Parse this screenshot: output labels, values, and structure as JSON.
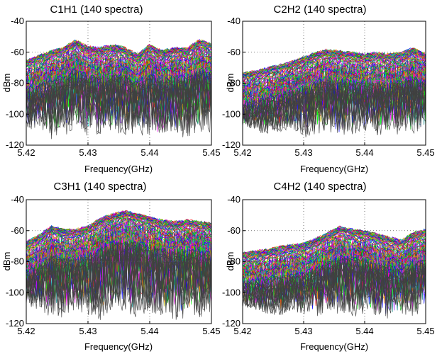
{
  "chart_data": [
    {
      "type": "line",
      "title": "C1H1 (140 spectra)",
      "xlabel": "Frequency(GHz)",
      "ylabel": "dBm",
      "xlim": [
        5.42,
        5.45
      ],
      "ylim": [
        -120,
        -40
      ],
      "xticks": [
        "5.42",
        "5.43",
        "5.44",
        "5.45"
      ],
      "yticks": [
        "-40",
        "-60",
        "-80",
        "-100",
        "-120"
      ],
      "grid": true,
      "series_count": 140,
      "envelope": {
        "x": [
          5.42,
          5.422,
          5.424,
          5.426,
          5.428,
          5.43,
          5.432,
          5.434,
          5.436,
          5.438,
          5.44,
          5.442,
          5.444,
          5.446,
          5.448,
          5.45
        ],
        "upper": [
          -66,
          -63,
          -60,
          -58,
          -53,
          -57,
          -58,
          -56,
          -58,
          -62,
          -56,
          -60,
          -58,
          -58,
          -53,
          -55
        ],
        "lower": [
          -110,
          -112,
          -118,
          -115,
          -110,
          -116,
          -116,
          -112,
          -115,
          -112,
          -118,
          -116,
          -114,
          -117,
          -113,
          -115
        ]
      },
      "colors": [
        "#0000ff",
        "#00a000",
        "#ff0000",
        "#00c0c0",
        "#c000c0",
        "#c0c000",
        "#404040",
        "#ff8000",
        "#8000ff",
        "#008080",
        "#00ff00",
        "#ff00ff"
      ]
    },
    {
      "type": "line",
      "title": "C2H2 (140 spectra)",
      "xlabel": "Frequency(GHz)",
      "ylabel": "dBm",
      "xlim": [
        5.42,
        5.45
      ],
      "ylim": [
        -120,
        -40
      ],
      "xticks": [
        "5.42",
        "5.43",
        "5.44",
        "5.45"
      ],
      "yticks": [
        "-40",
        "-60",
        "-80",
        "-100",
        "-120"
      ],
      "grid": true,
      "series_count": 140,
      "envelope": {
        "x": [
          5.42,
          5.422,
          5.424,
          5.426,
          5.428,
          5.43,
          5.432,
          5.434,
          5.436,
          5.438,
          5.44,
          5.442,
          5.444,
          5.446,
          5.448,
          5.45
        ],
        "upper": [
          -74,
          -73,
          -71,
          -69,
          -67,
          -64,
          -61,
          -59,
          -60,
          -61,
          -62,
          -61,
          -62,
          -61,
          -58,
          -62
        ],
        "lower": [
          -108,
          -110,
          -115,
          -113,
          -110,
          -116,
          -113,
          -112,
          -117,
          -114,
          -112,
          -118,
          -114,
          -113,
          -116,
          -114
        ]
      },
      "colors": [
        "#0000ff",
        "#00a000",
        "#ff0000",
        "#00c0c0",
        "#c000c0",
        "#c0c000",
        "#404040",
        "#ff8000",
        "#8000ff",
        "#008080",
        "#00ff00",
        "#ff00ff"
      ]
    },
    {
      "type": "line",
      "title": "C3H1 (140 spectra)",
      "xlabel": "Frequency(GHz)",
      "ylabel": "dBm",
      "xlim": [
        5.42,
        5.45
      ],
      "ylim": [
        -120,
        -40
      ],
      "xticks": [
        "5.42",
        "5.43",
        "5.44",
        "5.45"
      ],
      "yticks": [
        "-40",
        "-60",
        "-80",
        "-100",
        "-120"
      ],
      "grid": true,
      "series_count": 140,
      "envelope": {
        "x": [
          5.42,
          5.422,
          5.424,
          5.426,
          5.428,
          5.43,
          5.432,
          5.434,
          5.436,
          5.438,
          5.44,
          5.442,
          5.444,
          5.446,
          5.448,
          5.45
        ],
        "upper": [
          -68,
          -64,
          -58,
          -60,
          -60,
          -58,
          -53,
          -50,
          -48,
          -50,
          -52,
          -54,
          -55,
          -54,
          -55,
          -56
        ],
        "lower": [
          -110,
          -112,
          -116,
          -118,
          -112,
          -115,
          -119,
          -114,
          -116,
          -118,
          -115,
          -117,
          -120,
          -116,
          -118,
          -114
        ]
      },
      "colors": [
        "#0000ff",
        "#00a000",
        "#ff0000",
        "#00c0c0",
        "#c000c0",
        "#c0c000",
        "#404040",
        "#ff8000",
        "#8000ff",
        "#008080",
        "#00ff00",
        "#ff00ff"
      ]
    },
    {
      "type": "line",
      "title": "C4H2 (140 spectra)",
      "xlabel": "Frequency(GHz)",
      "ylabel": "dBm",
      "xlim": [
        5.42,
        5.45
      ],
      "ylim": [
        -120,
        -40
      ],
      "xticks": [
        "5.42",
        "5.43",
        "5.44",
        "5.45"
      ],
      "yticks": [
        "-40",
        "-60",
        "-80",
        "-100",
        "-120"
      ],
      "grid": true,
      "series_count": 140,
      "envelope": {
        "x": [
          5.42,
          5.422,
          5.424,
          5.426,
          5.428,
          5.43,
          5.432,
          5.434,
          5.436,
          5.438,
          5.44,
          5.442,
          5.444,
          5.446,
          5.448,
          5.45
        ],
        "upper": [
          -75,
          -74,
          -73,
          -71,
          -70,
          -69,
          -66,
          -62,
          -58,
          -60,
          -61,
          -63,
          -65,
          -67,
          -62,
          -60
        ],
        "lower": [
          -110,
          -112,
          -115,
          -116,
          -112,
          -114,
          -117,
          -113,
          -115,
          -118,
          -114,
          -116,
          -119,
          -115,
          -117,
          -113
        ]
      },
      "colors": [
        "#0000ff",
        "#00a000",
        "#ff0000",
        "#00c0c0",
        "#c000c0",
        "#c0c000",
        "#404040",
        "#ff8000",
        "#8000ff",
        "#008080",
        "#00ff00",
        "#ff00ff"
      ]
    }
  ]
}
